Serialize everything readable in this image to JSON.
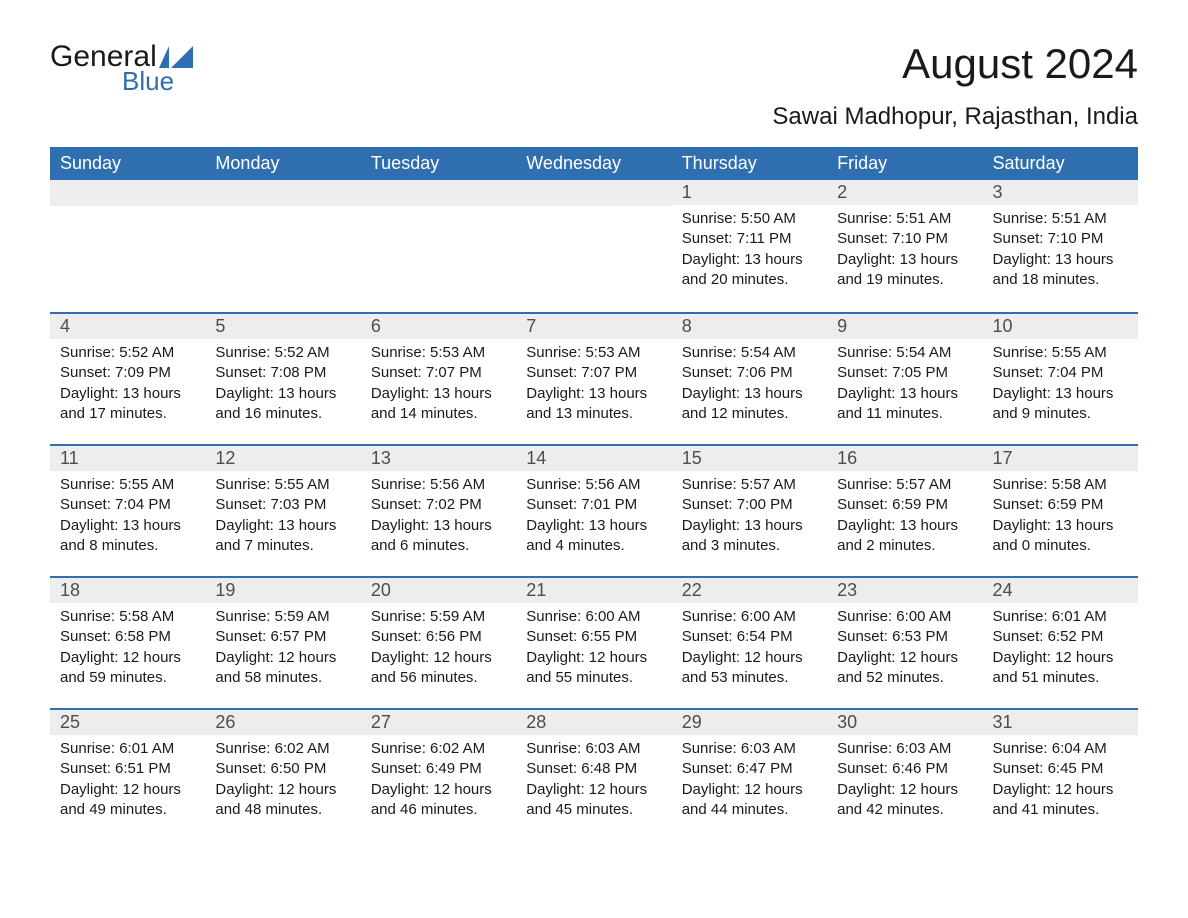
{
  "logo": {
    "text1": "General",
    "text2": "Blue",
    "icon_color": "#2f6fb0"
  },
  "title": "August 2024",
  "subtitle": "Sawai Madhopur, Rajasthan, India",
  "colors": {
    "header_bg": "#2f6fb0",
    "header_text": "#ffffff",
    "daynum_bg": "#ededed",
    "daynum_border": "#2f6fb0",
    "body_text": "#1a1a1a",
    "daynum_text": "#4d4d4d",
    "page_bg": "#ffffff"
  },
  "typography": {
    "title_fontsize": 42,
    "subtitle_fontsize": 24,
    "header_fontsize": 18,
    "daynum_fontsize": 18,
    "body_fontsize": 15,
    "font_family": "Arial"
  },
  "day_headers": [
    "Sunday",
    "Monday",
    "Tuesday",
    "Wednesday",
    "Thursday",
    "Friday",
    "Saturday"
  ],
  "weeks": [
    [
      null,
      null,
      null,
      null,
      {
        "n": "1",
        "sunrise": "Sunrise: 5:50 AM",
        "sunset": "Sunset: 7:11 PM",
        "daylight": "Daylight: 13 hours and 20 minutes."
      },
      {
        "n": "2",
        "sunrise": "Sunrise: 5:51 AM",
        "sunset": "Sunset: 7:10 PM",
        "daylight": "Daylight: 13 hours and 19 minutes."
      },
      {
        "n": "3",
        "sunrise": "Sunrise: 5:51 AM",
        "sunset": "Sunset: 7:10 PM",
        "daylight": "Daylight: 13 hours and 18 minutes."
      }
    ],
    [
      {
        "n": "4",
        "sunrise": "Sunrise: 5:52 AM",
        "sunset": "Sunset: 7:09 PM",
        "daylight": "Daylight: 13 hours and 17 minutes."
      },
      {
        "n": "5",
        "sunrise": "Sunrise: 5:52 AM",
        "sunset": "Sunset: 7:08 PM",
        "daylight": "Daylight: 13 hours and 16 minutes."
      },
      {
        "n": "6",
        "sunrise": "Sunrise: 5:53 AM",
        "sunset": "Sunset: 7:07 PM",
        "daylight": "Daylight: 13 hours and 14 minutes."
      },
      {
        "n": "7",
        "sunrise": "Sunrise: 5:53 AM",
        "sunset": "Sunset: 7:07 PM",
        "daylight": "Daylight: 13 hours and 13 minutes."
      },
      {
        "n": "8",
        "sunrise": "Sunrise: 5:54 AM",
        "sunset": "Sunset: 7:06 PM",
        "daylight": "Daylight: 13 hours and 12 minutes."
      },
      {
        "n": "9",
        "sunrise": "Sunrise: 5:54 AM",
        "sunset": "Sunset: 7:05 PM",
        "daylight": "Daylight: 13 hours and 11 minutes."
      },
      {
        "n": "10",
        "sunrise": "Sunrise: 5:55 AM",
        "sunset": "Sunset: 7:04 PM",
        "daylight": "Daylight: 13 hours and 9 minutes."
      }
    ],
    [
      {
        "n": "11",
        "sunrise": "Sunrise: 5:55 AM",
        "sunset": "Sunset: 7:04 PM",
        "daylight": "Daylight: 13 hours and 8 minutes."
      },
      {
        "n": "12",
        "sunrise": "Sunrise: 5:55 AM",
        "sunset": "Sunset: 7:03 PM",
        "daylight": "Daylight: 13 hours and 7 minutes."
      },
      {
        "n": "13",
        "sunrise": "Sunrise: 5:56 AM",
        "sunset": "Sunset: 7:02 PM",
        "daylight": "Daylight: 13 hours and 6 minutes."
      },
      {
        "n": "14",
        "sunrise": "Sunrise: 5:56 AM",
        "sunset": "Sunset: 7:01 PM",
        "daylight": "Daylight: 13 hours and 4 minutes."
      },
      {
        "n": "15",
        "sunrise": "Sunrise: 5:57 AM",
        "sunset": "Sunset: 7:00 PM",
        "daylight": "Daylight: 13 hours and 3 minutes."
      },
      {
        "n": "16",
        "sunrise": "Sunrise: 5:57 AM",
        "sunset": "Sunset: 6:59 PM",
        "daylight": "Daylight: 13 hours and 2 minutes."
      },
      {
        "n": "17",
        "sunrise": "Sunrise: 5:58 AM",
        "sunset": "Sunset: 6:59 PM",
        "daylight": "Daylight: 13 hours and 0 minutes."
      }
    ],
    [
      {
        "n": "18",
        "sunrise": "Sunrise: 5:58 AM",
        "sunset": "Sunset: 6:58 PM",
        "daylight": "Daylight: 12 hours and 59 minutes."
      },
      {
        "n": "19",
        "sunrise": "Sunrise: 5:59 AM",
        "sunset": "Sunset: 6:57 PM",
        "daylight": "Daylight: 12 hours and 58 minutes."
      },
      {
        "n": "20",
        "sunrise": "Sunrise: 5:59 AM",
        "sunset": "Sunset: 6:56 PM",
        "daylight": "Daylight: 12 hours and 56 minutes."
      },
      {
        "n": "21",
        "sunrise": "Sunrise: 6:00 AM",
        "sunset": "Sunset: 6:55 PM",
        "daylight": "Daylight: 12 hours and 55 minutes."
      },
      {
        "n": "22",
        "sunrise": "Sunrise: 6:00 AM",
        "sunset": "Sunset: 6:54 PM",
        "daylight": "Daylight: 12 hours and 53 minutes."
      },
      {
        "n": "23",
        "sunrise": "Sunrise: 6:00 AM",
        "sunset": "Sunset: 6:53 PM",
        "daylight": "Daylight: 12 hours and 52 minutes."
      },
      {
        "n": "24",
        "sunrise": "Sunrise: 6:01 AM",
        "sunset": "Sunset: 6:52 PM",
        "daylight": "Daylight: 12 hours and 51 minutes."
      }
    ],
    [
      {
        "n": "25",
        "sunrise": "Sunrise: 6:01 AM",
        "sunset": "Sunset: 6:51 PM",
        "daylight": "Daylight: 12 hours and 49 minutes."
      },
      {
        "n": "26",
        "sunrise": "Sunrise: 6:02 AM",
        "sunset": "Sunset: 6:50 PM",
        "daylight": "Daylight: 12 hours and 48 minutes."
      },
      {
        "n": "27",
        "sunrise": "Sunrise: 6:02 AM",
        "sunset": "Sunset: 6:49 PM",
        "daylight": "Daylight: 12 hours and 46 minutes."
      },
      {
        "n": "28",
        "sunrise": "Sunrise: 6:03 AM",
        "sunset": "Sunset: 6:48 PM",
        "daylight": "Daylight: 12 hours and 45 minutes."
      },
      {
        "n": "29",
        "sunrise": "Sunrise: 6:03 AM",
        "sunset": "Sunset: 6:47 PM",
        "daylight": "Daylight: 12 hours and 44 minutes."
      },
      {
        "n": "30",
        "sunrise": "Sunrise: 6:03 AM",
        "sunset": "Sunset: 6:46 PM",
        "daylight": "Daylight: 12 hours and 42 minutes."
      },
      {
        "n": "31",
        "sunrise": "Sunrise: 6:04 AM",
        "sunset": "Sunset: 6:45 PM",
        "daylight": "Daylight: 12 hours and 41 minutes."
      }
    ]
  ]
}
